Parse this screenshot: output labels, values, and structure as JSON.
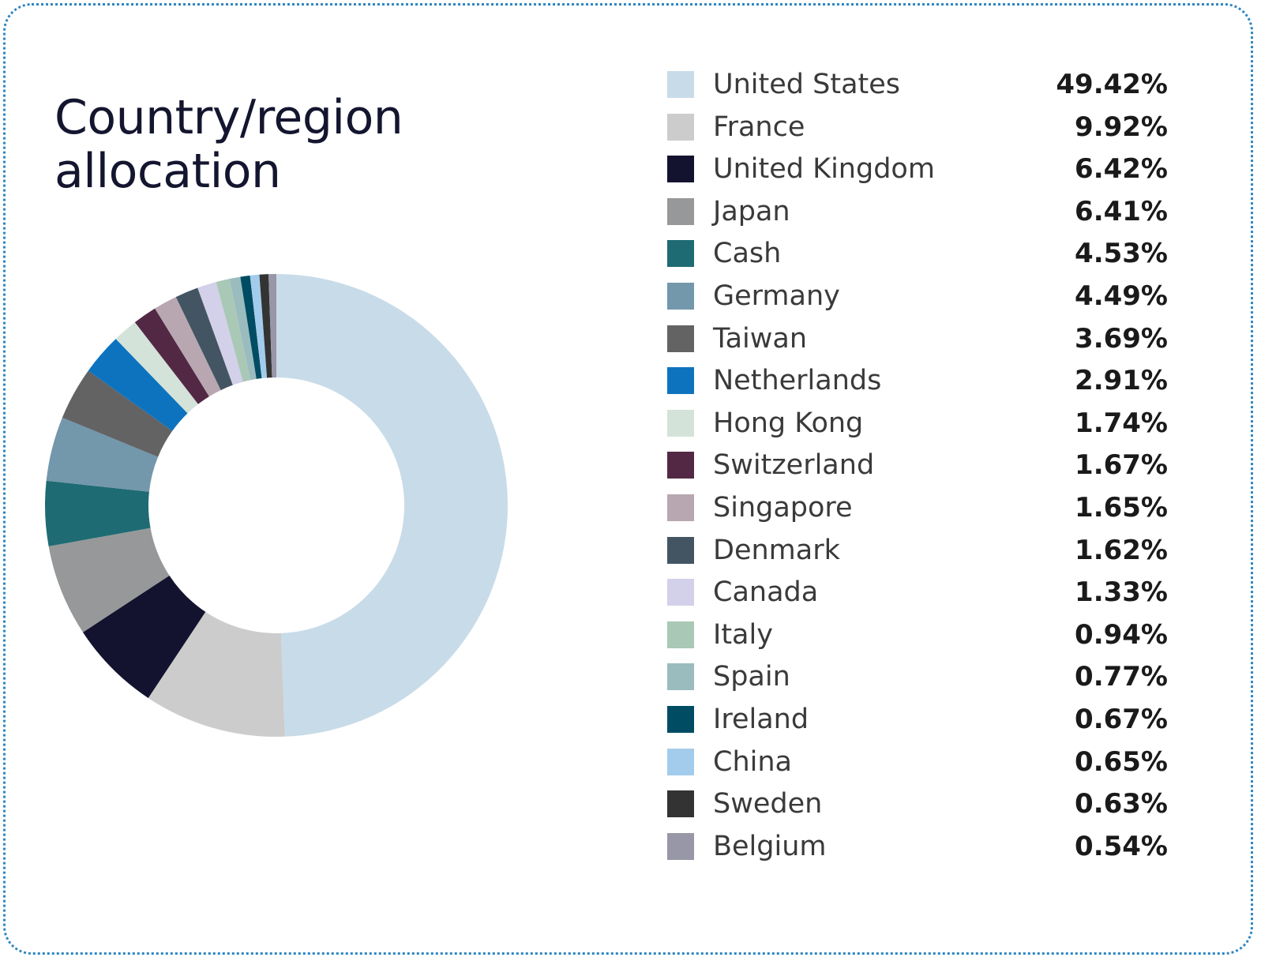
{
  "title_line1": "Country/region",
  "title_line2": "allocation",
  "chart_data": {
    "type": "pie",
    "variant": "donut",
    "legend_position": "right",
    "categories": [
      "United States",
      "France",
      "United Kingdom",
      "Japan",
      "Cash",
      "Germany",
      "Taiwan",
      "Netherlands",
      "Hong Kong",
      "Switzerland",
      "Singapore",
      "Denmark",
      "Canada",
      "Italy",
      "Spain",
      "Ireland",
      "China",
      "Sweden",
      "Belgium"
    ],
    "values": [
      49.42,
      9.92,
      6.42,
      6.41,
      4.53,
      4.49,
      3.69,
      2.91,
      1.74,
      1.67,
      1.65,
      1.62,
      1.33,
      0.94,
      0.77,
      0.67,
      0.65,
      0.63,
      0.54
    ],
    "value_labels": [
      "49.42%",
      "9.92%",
      "6.42%",
      "6.41%",
      "4.53%",
      "4.49%",
      "3.69%",
      "2.91%",
      "1.74%",
      "1.67%",
      "1.65%",
      "1.62%",
      "1.33%",
      "0.94%",
      "0.77%",
      "0.67%",
      "0.65%",
      "0.63%",
      "0.54%"
    ],
    "colors": [
      "#c8dbe8",
      "#cccccc",
      "#14132f",
      "#979899",
      "#1e6b73",
      "#7397ab",
      "#636363",
      "#0e73bf",
      "#d3e3d9",
      "#532845",
      "#b8a7b1",
      "#435563",
      "#d3d0e9",
      "#a9c8b6",
      "#9bbcbf",
      "#004c63",
      "#a3ccec",
      "#333333",
      "#9797a7"
    ]
  }
}
